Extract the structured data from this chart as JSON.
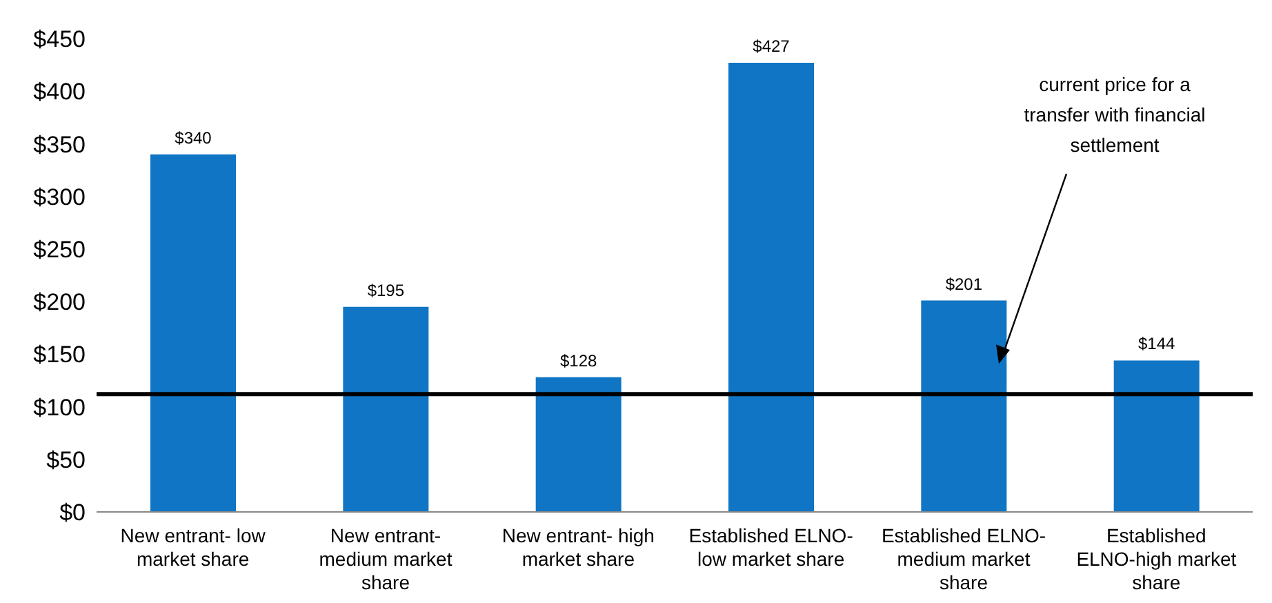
{
  "chart_data": {
    "type": "bar",
    "categories": [
      "New entrant- low market share",
      "New entrant- medium market share",
      "New entrant- high market share",
      "Established ELNO- low market share",
      "Established ELNO- medium market share",
      "Established ELNO-high market share"
    ],
    "values": [
      340,
      195,
      128,
      427,
      201,
      144
    ],
    "value_labels": [
      "$340",
      "$195",
      "$128",
      "$427",
      "$201",
      "$144"
    ],
    "color": "#0f75c4",
    "ylim": [
      0,
      450
    ],
    "yticks": [
      {
        "value": 0,
        "label": "$0"
      },
      {
        "value": 50,
        "label": "$50"
      },
      {
        "value": 100,
        "label": "$100"
      },
      {
        "value": 150,
        "label": "$150"
      },
      {
        "value": 200,
        "label": "$200"
      },
      {
        "value": 250,
        "label": "$250"
      },
      {
        "value": 300,
        "label": "$300"
      },
      {
        "value": 350,
        "label": "$350"
      },
      {
        "value": 400,
        "label": "$400"
      },
      {
        "value": 450,
        "label": "$450"
      }
    ],
    "ref_lines": [
      {
        "axis": "y",
        "value": 112,
        "label": "current price for a transfer with financial settlement",
        "color": "#000000"
      }
    ],
    "grid": false,
    "legend": false
  }
}
